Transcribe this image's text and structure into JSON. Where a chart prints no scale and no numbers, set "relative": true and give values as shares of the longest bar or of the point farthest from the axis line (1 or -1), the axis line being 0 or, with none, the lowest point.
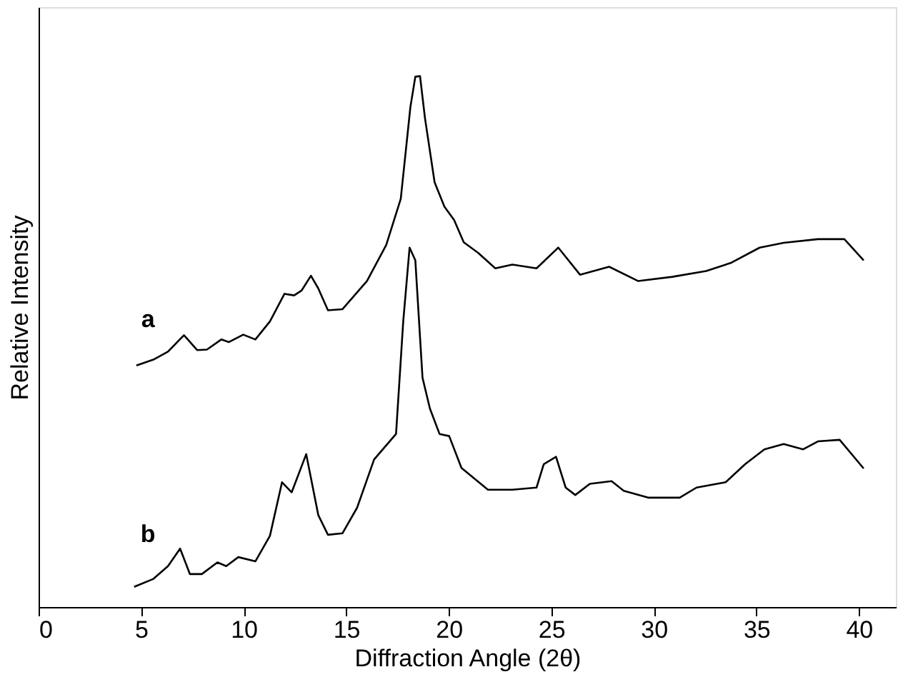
{
  "chart_data": {
    "type": "line",
    "relative": true,
    "xlabel": "Diffraction Angle (2θ)",
    "ylabel": "Relative Intensity",
    "xlim": [
      0,
      41.8
    ],
    "xticks": [
      0,
      5,
      10,
      15,
      20,
      25,
      30,
      35,
      40
    ],
    "grid": false,
    "legend": false,
    "marker": "none",
    "line_style": "solid",
    "series": [
      {
        "name": "a",
        "color": "#000000",
        "x": [
          4.77,
          5.6,
          6.31,
          7.09,
          7.73,
          8.21,
          8.91,
          9.27,
          9.98,
          10.57,
          11.28,
          11.99,
          12.46,
          12.82,
          13.28,
          13.64,
          14.11,
          14.82,
          16.01,
          16.95,
          17.66,
          18.13,
          18.37,
          18.6,
          18.84,
          19.31,
          19.79,
          20.26,
          20.73,
          21.44,
          22.27,
          23.1,
          24.28,
          25.34,
          26.4,
          27.82,
          29.24,
          30.9,
          32.55,
          33.74,
          35.16,
          36.33,
          38.0,
          39.29,
          40.23
        ],
        "values": [
          0.455,
          0.466,
          0.481,
          0.512,
          0.484,
          0.485,
          0.504,
          0.499,
          0.513,
          0.504,
          0.538,
          0.59,
          0.587,
          0.596,
          0.624,
          0.6,
          0.559,
          0.561,
          0.614,
          0.682,
          0.769,
          0.942,
          0.999,
          1,
          0.921,
          0.8,
          0.754,
          0.729,
          0.687,
          0.667,
          0.638,
          0.645,
          0.638,
          0.677,
          0.626,
          0.641,
          0.614,
          0.622,
          0.633,
          0.648,
          0.677,
          0.686,
          0.693,
          0.693,
          0.653
        ]
      },
      {
        "name": "b",
        "color": "#000000",
        "x": [
          4.66,
          5.6,
          6.31,
          6.9,
          7.38,
          7.96,
          8.72,
          9.15,
          9.74,
          10.57,
          11.28,
          11.87,
          12.34,
          13.05,
          13.64,
          14.11,
          14.82,
          15.53,
          16.36,
          17.43,
          17.78,
          18.09,
          18.37,
          18.72,
          19.08,
          19.55,
          20.02,
          20.62,
          21.91,
          23.1,
          24.28,
          24.63,
          25.23,
          25.7,
          26.17,
          26.88,
          27.94,
          28.53,
          29.72,
          31.26,
          32.08,
          33.5,
          34.45,
          35.39,
          36.33,
          37.28,
          38.0,
          39.06,
          40.23
        ],
        "values": [
          0.038,
          0.053,
          0.077,
          0.11,
          0.062,
          0.062,
          0.084,
          0.077,
          0.094,
          0.086,
          0.134,
          0.235,
          0.216,
          0.288,
          0.173,
          0.136,
          0.139,
          0.187,
          0.278,
          0.326,
          0.538,
          0.677,
          0.653,
          0.432,
          0.374,
          0.326,
          0.322,
          0.262,
          0.221,
          0.221,
          0.225,
          0.269,
          0.283,
          0.225,
          0.211,
          0.232,
          0.237,
          0.219,
          0.206,
          0.206,
          0.225,
          0.235,
          0.269,
          0.297,
          0.307,
          0.297,
          0.312,
          0.315,
          0.261
        ]
      }
    ]
  }
}
